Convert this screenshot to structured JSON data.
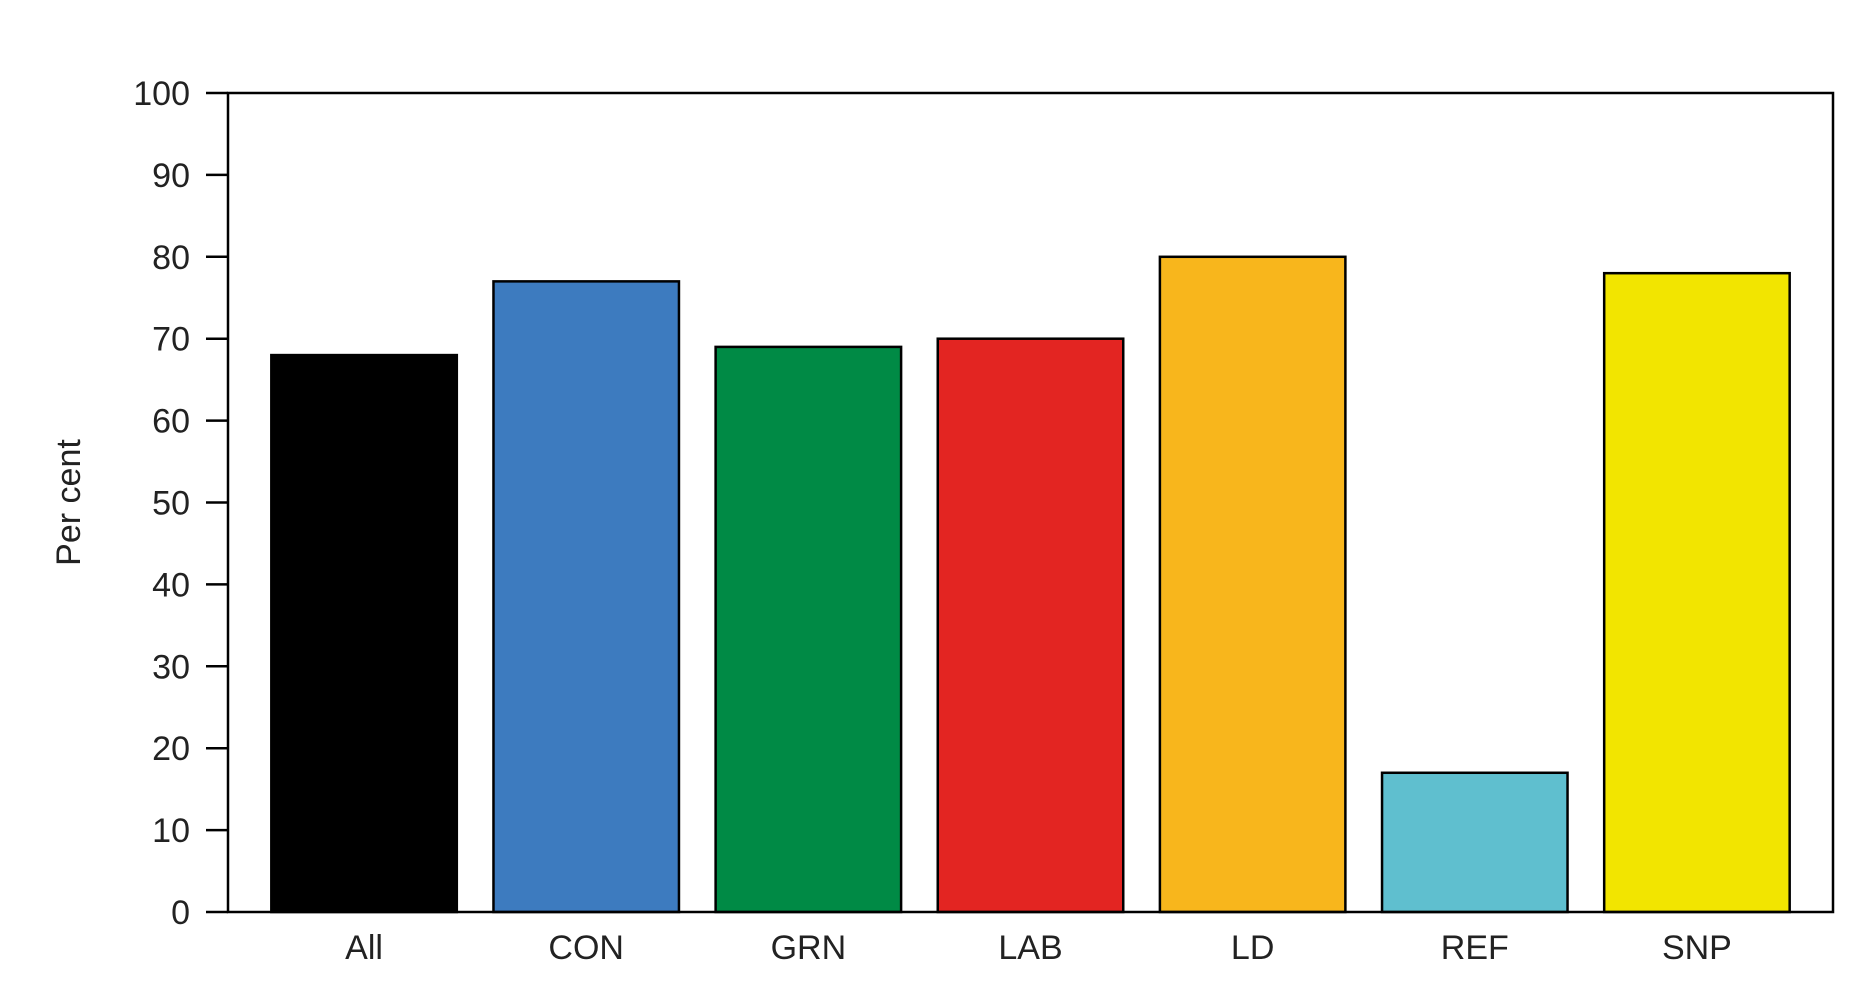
{
  "chart_data": {
    "type": "bar",
    "categories": [
      "All",
      "CON",
      "GRN",
      "LAB",
      "LD",
      "REF",
      "SNP"
    ],
    "values": [
      68,
      77,
      69,
      70,
      80,
      17,
      78
    ],
    "colors": [
      "#000000",
      "#3d7bbf",
      "#008a45",
      "#e32522",
      "#f8b61c",
      "#5fbfcf",
      "#f2e500"
    ],
    "ylabel": "Per cent",
    "xlabel": "",
    "title": "",
    "ylim": [
      0,
      100
    ],
    "yticks": [
      0,
      10,
      20,
      30,
      40,
      50,
      60,
      70,
      80,
      90,
      100
    ],
    "grid": false,
    "legend": "none"
  }
}
